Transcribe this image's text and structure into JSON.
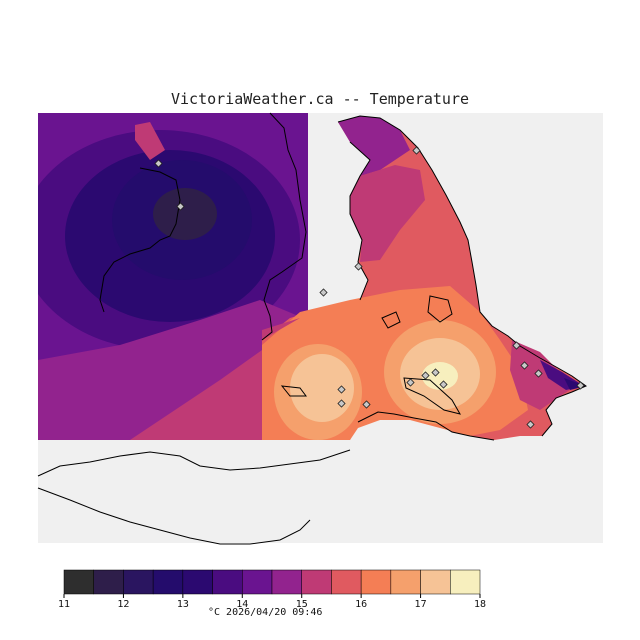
{
  "title": "VictoriaWeather.ca -- Temperature",
  "timestamp": "°C  2026/04/20 09:46",
  "colors": {
    "water": "#f0f0f0",
    "land_outline": "#000000",
    "station_marker": "#c8c8c8"
  },
  "legend": {
    "unit": "°C",
    "tick_labels": [
      "11",
      "12",
      "13",
      "14",
      "15",
      "16",
      "17",
      "18"
    ],
    "bins": [
      {
        "from": 11.0,
        "to": 11.5,
        "color": "#2e2e2e"
      },
      {
        "from": 11.5,
        "to": 12.0,
        "color": "#2e1e4a"
      },
      {
        "from": 12.0,
        "to": 12.5,
        "color": "#2a1560"
      },
      {
        "from": 12.5,
        "to": 13.0,
        "color": "#240c6c"
      },
      {
        "from": 13.0,
        "to": 13.5,
        "color": "#2b0970"
      },
      {
        "from": 13.5,
        "to": 14.0,
        "color": "#4a0c80"
      },
      {
        "from": 14.0,
        "to": 14.5,
        "color": "#6a1490"
      },
      {
        "from": 14.5,
        "to": 15.0,
        "color": "#92238e"
      },
      {
        "from": 15.0,
        "to": 15.5,
        "color": "#bf3a75"
      },
      {
        "from": 15.5,
        "to": 16.0,
        "color": "#e05a60"
      },
      {
        "from": 16.0,
        "to": 16.5,
        "color": "#f47e55"
      },
      {
        "from": 16.5,
        "to": 17.0,
        "color": "#f5a06c"
      },
      {
        "from": 17.0,
        "to": 17.5,
        "color": "#f6c396"
      },
      {
        "from": 17.5,
        "to": 18.0,
        "color": "#f7efbe"
      }
    ]
  },
  "stations_count": 17
}
